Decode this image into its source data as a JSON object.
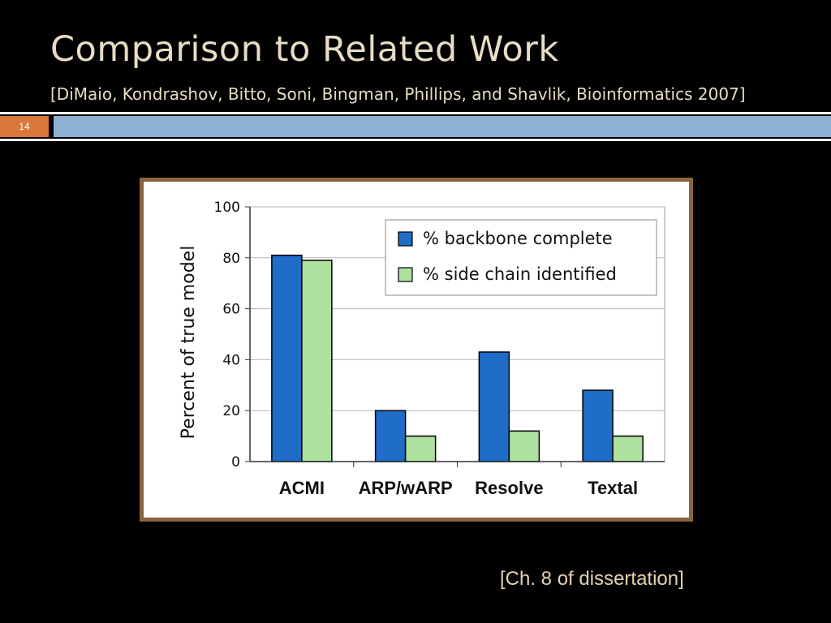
{
  "slide": {
    "title": "Comparison to Related Work",
    "subtitle": "[DiMaio, Kondrashov, Bitto, Soni, Bingman, Phillips, and Shavlik, Bioinformatics 2007]",
    "number": "14",
    "footer": "[Ch. 8 of dissertation]"
  },
  "colors": {
    "background": "#000000",
    "title_text": "#e8dcc4",
    "number_badge": "#d9783a",
    "accent_bar": "#8db0d3",
    "frame": "#8a643f",
    "series_backbone": "#1f6cc9",
    "series_sidechain": "#aee0a0"
  },
  "chart_data": {
    "type": "bar",
    "categories": [
      "ACMI",
      "ARP/wARP",
      "Resolve",
      "Textal"
    ],
    "series": [
      {
        "name": "% backbone complete",
        "values": [
          81,
          20,
          43,
          28
        ]
      },
      {
        "name": "% side chain identified",
        "values": [
          79,
          10,
          12,
          10
        ]
      }
    ],
    "xlabel": "",
    "ylabel": "Percent of true model",
    "ylim": [
      0,
      100
    ],
    "yticks": [
      "0",
      "20",
      "40",
      "60",
      "80",
      "100"
    ],
    "grid": true,
    "legend_position": "top-right"
  }
}
